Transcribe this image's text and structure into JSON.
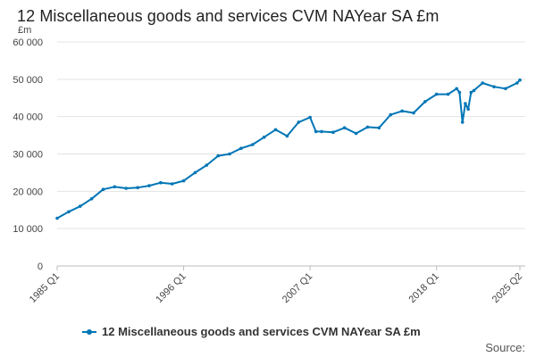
{
  "unit_label": "£m",
  "source_label": "Source:",
  "colors": {
    "series": "#0076b6",
    "grid": "#e3e3e3",
    "axis": "#bbbbbb"
  },
  "chart_data": {
    "type": "line",
    "title": "12 Miscellaneous goods and services CVM NAYear SA £m",
    "xlabel": "",
    "ylabel": "£m",
    "ylim": [
      0,
      60000
    ],
    "yticks": [
      0,
      10000,
      20000,
      30000,
      40000,
      50000,
      60000
    ],
    "ytick_labels": [
      "0",
      "10 000",
      "20 000",
      "30 000",
      "40 000",
      "50 000",
      "60 000"
    ],
    "xticks": [
      "1985 Q1",
      "1996 Q1",
      "2007 Q1",
      "2018 Q1",
      "2025 Q2"
    ],
    "grid": true,
    "legend": "bottom",
    "x": [
      "1985 Q1",
      "1986 Q1",
      "1987 Q1",
      "1988 Q1",
      "1989 Q1",
      "1990 Q1",
      "1991 Q1",
      "1992 Q1",
      "1993 Q1",
      "1994 Q1",
      "1995 Q1",
      "1996 Q1",
      "1997 Q1",
      "1998 Q1",
      "1999 Q1",
      "2000 Q1",
      "2001 Q1",
      "2002 Q1",
      "2003 Q1",
      "2004 Q1",
      "2005 Q1",
      "2006 Q1",
      "2007 Q1",
      "2007 Q3",
      "2008 Q1",
      "2009 Q1",
      "2010 Q1",
      "2011 Q1",
      "2012 Q1",
      "2013 Q1",
      "2014 Q1",
      "2015 Q1",
      "2016 Q1",
      "2017 Q1",
      "2018 Q1",
      "2019 Q1",
      "2019 Q4",
      "2020 Q1",
      "2020 Q2",
      "2020 Q3",
      "2020 Q4",
      "2021 Q1",
      "2021 Q2",
      "2022 Q1",
      "2023 Q1",
      "2024 Q1",
      "2025 Q1",
      "2025 Q2"
    ],
    "series": [
      {
        "name": "12 Miscellaneous goods and services CVM NAYear SA £m",
        "values": [
          12800,
          14500,
          16000,
          18000,
          20500,
          21200,
          20800,
          21000,
          21500,
          22300,
          22000,
          22800,
          25000,
          27000,
          29500,
          30000,
          31500,
          32500,
          34500,
          36500,
          34800,
          38500,
          39800,
          36000,
          36000,
          35800,
          37000,
          35500,
          37200,
          37000,
          40500,
          41500,
          41000,
          44000,
          46000,
          46000,
          47500,
          46500,
          38500,
          43500,
          42000,
          46500,
          47000,
          49000,
          48000,
          47500,
          49000,
          49800
        ]
      }
    ]
  }
}
